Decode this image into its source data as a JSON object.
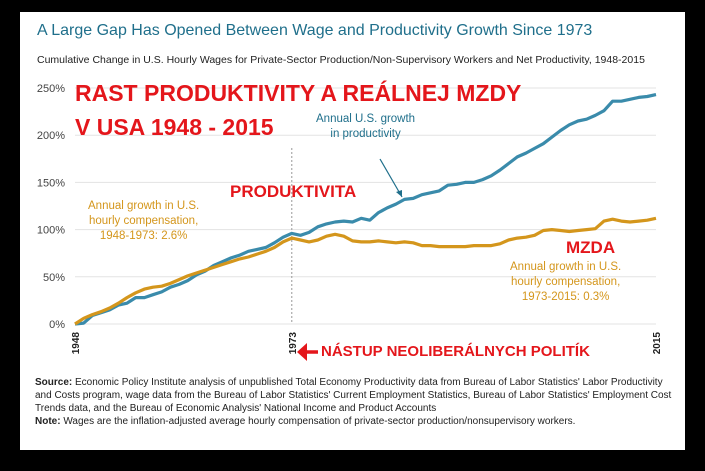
{
  "header": {
    "title": "A Large Gap Has Opened Between Wage and Productivity Growth Since 1973",
    "subtitle": "Cumulative Change in U.S. Hourly Wages for Private-Sector Production/Non-Supervisory Workers and Net Productivity, 1948-2015"
  },
  "overlay": {
    "line1": "RAST PRODUKTIVITY A REÁLNEJ MZDY",
    "line2": "V USA 1948 - 2015",
    "productivity_label": "PRODUKTIVITA",
    "wage_label": "MZDA",
    "neoliberal_label": "NÁSTUP NEOLIBERÁLNYCH POLITÍK"
  },
  "annotations": {
    "productivity": [
      "Annual U.S. growth",
      "in productivity"
    ],
    "wage_early": [
      "Annual growth in U.S.",
      "hourly compensation,",
      "1948-1973: 2.6%"
    ],
    "wage_late": [
      "Annual growth in U.S.",
      "hourly compensation,",
      "1973-2015: 0.3%"
    ]
  },
  "footnote": {
    "source_label": "Source:",
    "source_text": " Economic Policy Institute analysis of  unpublished Total Economy Productivity data from Bureau of Labor Statistics' Labor Productivity and Costs program, wage data from the Bureau of Labor Statistics' Current Employment Statistics, Bureau of Labor Statistics' Employment Cost Trends data, and the Bureau of Economic Analysis' National Income and Product Accounts",
    "note_label": "Note:",
    "note_text": " Wages are the inflation-adjusted average hourly compensation of private-sector production/nonsupervisory workers."
  },
  "colors": {
    "productivity": "#3a8bab",
    "wage": "#d4961c",
    "accent_red": "#e4161b",
    "title_blue": "#1f6f8b"
  },
  "chart_data": {
    "type": "line",
    "ylim": [
      0,
      250
    ],
    "xlim": [
      1948,
      2015
    ],
    "yticks": [
      0,
      50,
      100,
      150,
      200,
      250
    ],
    "ytick_labels": [
      "0%",
      "50%",
      "100%",
      "150%",
      "200%",
      "250%"
    ],
    "x_tick_labels": [
      "1948",
      "1973",
      "2015"
    ],
    "x_ticks": [
      1948,
      1973,
      2015
    ],
    "grid": true,
    "series": [
      {
        "key": "productivity",
        "x": [
          1948,
          1949,
          1950,
          1951,
          1952,
          1953,
          1954,
          1955,
          1956,
          1957,
          1958,
          1959,
          1960,
          1961,
          1962,
          1963,
          1964,
          1965,
          1966,
          1967,
          1968,
          1969,
          1970,
          1971,
          1972,
          1973,
          1974,
          1975,
          1976,
          1977,
          1978,
          1979,
          1980,
          1981,
          1982,
          1983,
          1984,
          1985,
          1986,
          1987,
          1988,
          1989,
          1990,
          1991,
          1992,
          1993,
          1994,
          1995,
          1996,
          1997,
          1998,
          1999,
          2000,
          2001,
          2002,
          2003,
          2004,
          2005,
          2006,
          2007,
          2008,
          2009,
          2010,
          2011,
          2012,
          2013,
          2014,
          2015
        ],
        "values": [
          0,
          1,
          9,
          12,
          15,
          20,
          22,
          28,
          28,
          31,
          34,
          39,
          42,
          46,
          52,
          56,
          62,
          66,
          70,
          73,
          77,
          79,
          81,
          86,
          92,
          96,
          94,
          97,
          103,
          106,
          108,
          109,
          108,
          112,
          110,
          118,
          123,
          127,
          132,
          133,
          137,
          139,
          141,
          147,
          148,
          150,
          150,
          153,
          157,
          163,
          170,
          177,
          181,
          186,
          191,
          198,
          205,
          211,
          215,
          217,
          221,
          226,
          236,
          236,
          238,
          240,
          241,
          243
        ]
      },
      {
        "key": "wage",
        "x": [
          1948,
          1949,
          1950,
          1951,
          1952,
          1953,
          1954,
          1955,
          1956,
          1957,
          1958,
          1959,
          1960,
          1961,
          1962,
          1963,
          1964,
          1965,
          1966,
          1967,
          1968,
          1969,
          1970,
          1971,
          1972,
          1973,
          1974,
          1975,
          1976,
          1977,
          1978,
          1979,
          1980,
          1981,
          1982,
          1983,
          1984,
          1985,
          1986,
          1987,
          1988,
          1989,
          1990,
          1991,
          1992,
          1993,
          1994,
          1995,
          1996,
          1997,
          1998,
          1999,
          2000,
          2001,
          2002,
          2003,
          2004,
          2005,
          2006,
          2007,
          2008,
          2009,
          2010,
          2011,
          2012,
          2013,
          2014,
          2015
        ],
        "values": [
          0,
          6,
          10,
          13,
          17,
          22,
          28,
          33,
          37,
          39,
          40,
          43,
          47,
          51,
          54,
          57,
          60,
          63,
          66,
          69,
          71,
          74,
          77,
          81,
          87,
          91,
          89,
          87,
          89,
          93,
          95,
          93,
          88,
          87,
          87,
          88,
          87,
          86,
          87,
          86,
          83,
          83,
          82,
          82,
          82,
          82,
          83,
          83,
          83,
          85,
          89,
          91,
          92,
          94,
          99,
          100,
          99,
          98,
          99,
          100,
          101,
          109,
          111,
          109,
          108,
          109,
          110,
          112
        ]
      }
    ]
  }
}
